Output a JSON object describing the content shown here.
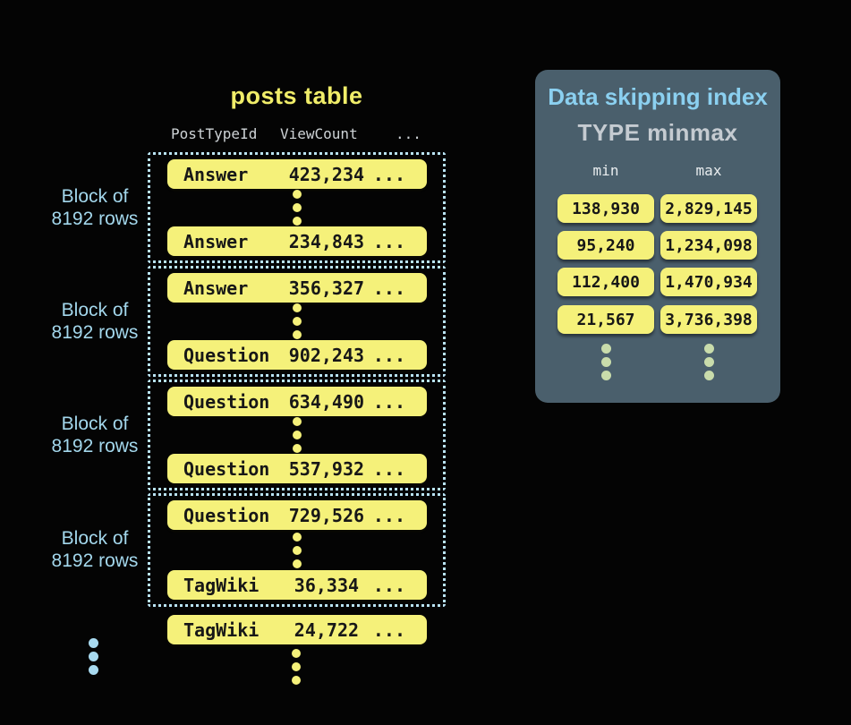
{
  "colors": {
    "background": "#040404",
    "row_yellow": "#f5f17a",
    "title_yellow": "#f0ed69",
    "block_border_blue": "#b9e3f4",
    "block_label_blue": "#a3d7ec",
    "panel_background": "#4a5f6c",
    "panel_title_blue": "#8bd0f0",
    "panel_subtitle_gray": "#c5cbd1",
    "index_dot_green": "#c9dcab",
    "row_text_dark": "#171717"
  },
  "posts_table": {
    "title": "posts table",
    "columns": [
      "PostTypeId",
      "ViewCount",
      "..."
    ],
    "block_label": {
      "line1": "Block of",
      "line2": "8192 rows"
    },
    "blocks": [
      {
        "rows": [
          {
            "type": "Answer",
            "view_count": "423,234",
            "more": "..."
          },
          {
            "type": "Answer",
            "view_count": "234,843",
            "more": "..."
          }
        ]
      },
      {
        "rows": [
          {
            "type": "Answer",
            "view_count": "356,327",
            "more": "..."
          },
          {
            "type": "Question",
            "view_count": "902,243",
            "more": "..."
          }
        ]
      },
      {
        "rows": [
          {
            "type": "Question",
            "view_count": "634,490",
            "more": "..."
          },
          {
            "type": "Question",
            "view_count": "537,932",
            "more": "..."
          }
        ]
      },
      {
        "rows": [
          {
            "type": "Question",
            "view_count": "729,526",
            "more": "..."
          },
          {
            "type": "TagWiki",
            "view_count": "36,334",
            "more": "..."
          }
        ]
      }
    ],
    "overflow_row": {
      "type": "TagWiki",
      "view_count": "24,722",
      "more": "..."
    }
  },
  "index_panel": {
    "title": "Data skipping index",
    "subtitle": "TYPE minmax",
    "columns": {
      "min": "min",
      "max": "max"
    },
    "entries": [
      {
        "min": "138,930",
        "max": "2,829,145"
      },
      {
        "min": "95,240",
        "max": "1,234,098"
      },
      {
        "min": "112,400",
        "max": "1,470,934"
      },
      {
        "min": "21,567",
        "max": "3,736,398"
      }
    ]
  }
}
